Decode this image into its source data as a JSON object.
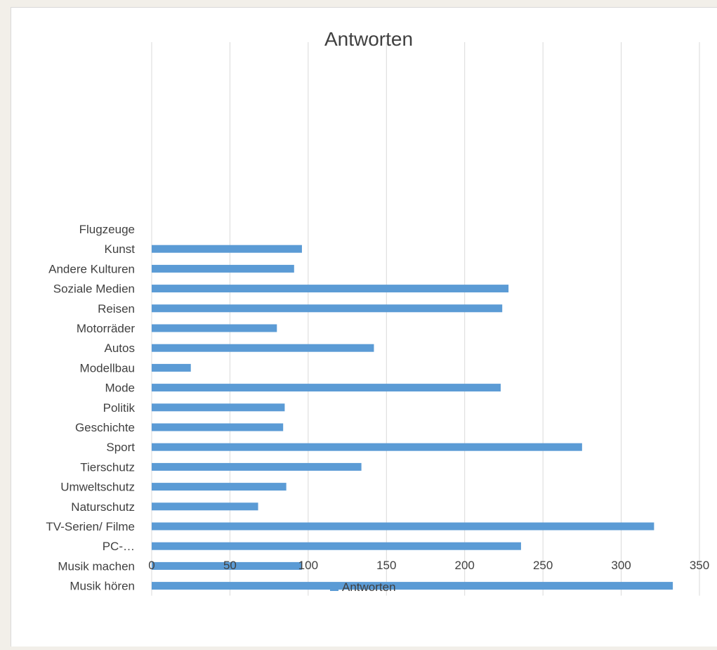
{
  "chart_data": {
    "type": "bar",
    "orientation": "horizontal",
    "title": "Antworten",
    "xlabel": "",
    "ylabel": "",
    "xlim": [
      0,
      350
    ],
    "x_ticks": [
      0,
      50,
      100,
      150,
      200,
      250,
      300,
      350
    ],
    "grid": "vertical",
    "legend_position": "bottom",
    "bar_color": "#5b9bd5",
    "categories": [
      "Flugzeuge",
      "Kunst",
      "Andere Kulturen",
      "Soziale Medien",
      "Reisen",
      "Motorräder",
      "Autos",
      "Modellbau",
      "Mode",
      "Politik",
      "Geschichte",
      "Sport",
      "Tierschutz",
      "Umweltschutz",
      "Naturschutz",
      "TV-Serien/ Filme",
      "PC-…",
      "Musik machen",
      "Musik hören"
    ],
    "series": [
      {
        "name": "Antworten",
        "values": [
          0,
          96,
          91,
          228,
          224,
          80,
          142,
          25,
          223,
          85,
          84,
          275,
          134,
          86,
          68,
          321,
          236,
          96,
          333
        ]
      }
    ]
  }
}
